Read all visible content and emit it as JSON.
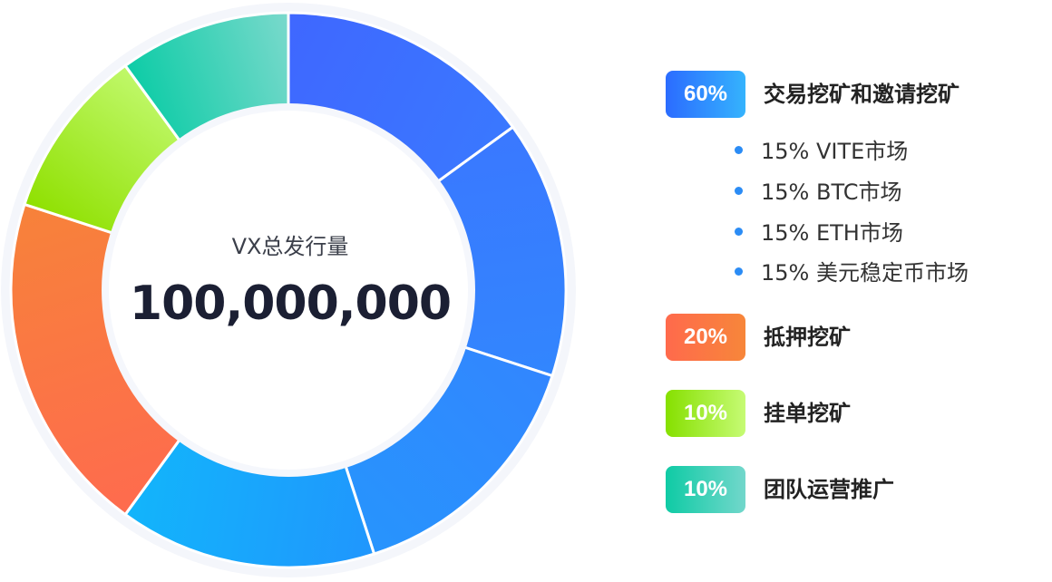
{
  "chart_data": {
    "type": "pie",
    "center": {
      "title": "VX总发行量",
      "value": "100,000,000"
    },
    "slices": [
      {
        "category": "VITE市场",
        "value": 15,
        "group": "交易挖矿和邀请挖矿",
        "colors": [
          "#3f67ff",
          "#3a78ff"
        ]
      },
      {
        "category": "BTC市场",
        "value": 15,
        "group": "交易挖矿和邀请挖矿",
        "colors": [
          "#3a78ff",
          "#3286fe"
        ]
      },
      {
        "category": "ETH市场",
        "value": 15,
        "group": "交易挖矿和邀请挖矿",
        "colors": [
          "#3286fe",
          "#2794fd"
        ]
      },
      {
        "category": "美元稳定币市场",
        "value": 15,
        "group": "交易挖矿和邀请挖矿",
        "colors": [
          "#2096fd",
          "#12b5fb"
        ]
      },
      {
        "category": "抵押挖矿",
        "value": 20,
        "group": "抵押挖矿",
        "colors": [
          "#fe6b4e",
          "#f7823a"
        ]
      },
      {
        "category": "挂单挖矿",
        "value": 10,
        "group": "挂单挖矿",
        "colors": [
          "#8fe000",
          "#c0f86a"
        ]
      },
      {
        "category": "团队运营推广",
        "value": 10,
        "group": "团队运营推广",
        "colors": [
          "#0ccca6",
          "#7ad9cc"
        ]
      }
    ]
  },
  "legend": {
    "groups": [
      {
        "percent": "60%",
        "label": "交易挖矿和邀请挖矿",
        "gradient": [
          "#2b6cff",
          "#35b3fd"
        ],
        "sub": [
          "15% VITE市场",
          "15% BTC市场",
          "15% ETH市场",
          "15% 美元稳定币市场"
        ]
      },
      {
        "percent": "20%",
        "label": "抵押挖矿",
        "gradient": [
          "#ff6a4c",
          "#f7863a"
        ],
        "sub": []
      },
      {
        "percent": "10%",
        "label": "挂单挖矿",
        "gradient": [
          "#86e000",
          "#c6fb74"
        ],
        "sub": []
      },
      {
        "percent": "10%",
        "label": "团队运营推广",
        "gradient": [
          "#0fcba5",
          "#72d7cb"
        ],
        "sub": []
      }
    ]
  }
}
